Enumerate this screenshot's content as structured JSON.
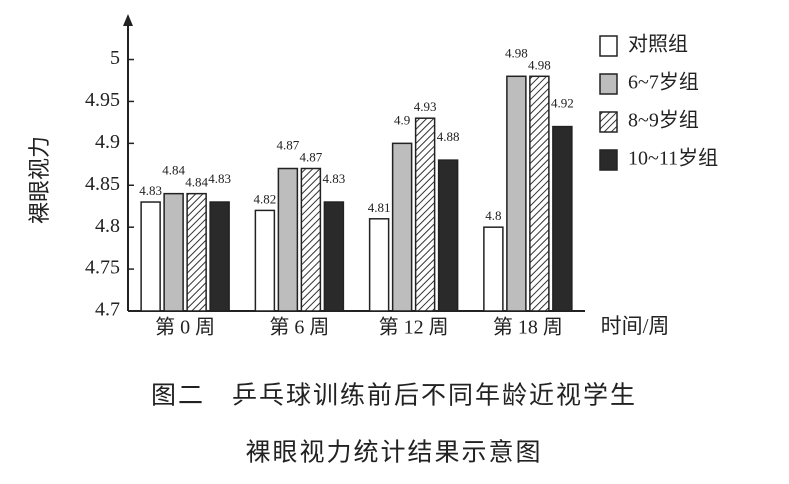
{
  "chart_data": {
    "type": "bar",
    "y_label": "裸眼视力",
    "x_label": "时间/周",
    "caption": [
      "图二　乒乓球训练前后不同年龄近视学生",
      "裸眼视力统计结果示意图"
    ],
    "categories": [
      "第 0 周",
      "第 6 周",
      "第 12 周",
      "第 18 周"
    ],
    "series": [
      {
        "name": "对照组",
        "color": "#ffffff",
        "values": [
          4.83,
          4.82,
          4.81,
          4.8
        ]
      },
      {
        "name": "6~7岁组",
        "color": "#bdbdbd",
        "values": [
          4.84,
          4.87,
          4.9,
          4.98
        ]
      },
      {
        "name": "8~9岁组",
        "color": "#bdbdbd",
        "pattern": "diagonal",
        "values": [
          4.84,
          4.87,
          4.93,
          4.98
        ]
      },
      {
        "name": "10~11岁组",
        "color": "#2a2a2a",
        "values": [
          4.83,
          4.83,
          4.88,
          4.92
        ]
      }
    ],
    "ylim": [
      4.7,
      5.04
    ],
    "yticks": [
      4.7,
      4.75,
      4.8,
      4.85,
      4.9,
      4.95,
      5
    ],
    "legend": "upper right"
  }
}
